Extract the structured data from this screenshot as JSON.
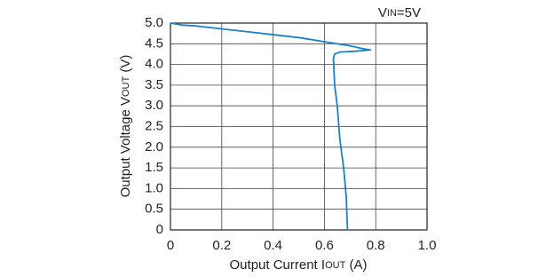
{
  "chart_data": {
    "type": "line",
    "ylabel": [
      "Output Voltage V",
      "OUT",
      " (V)"
    ],
    "xlabel": [
      "Output Current I",
      "OUT",
      " (A)"
    ],
    "annotation": [
      "V",
      "IN",
      "=5V"
    ],
    "x": [
      0,
      0.05,
      0.1,
      0.2,
      0.3,
      0.4,
      0.5,
      0.6,
      0.7,
      0.75,
      0.78,
      0.72,
      0.66,
      0.64,
      0.635,
      0.64,
      0.65,
      0.66,
      0.675,
      0.685,
      0.69
    ],
    "series": [
      {
        "color": "#1f7fc0",
        "values": [
          5.0,
          4.95,
          4.93,
          4.86,
          4.79,
          4.72,
          4.65,
          4.55,
          4.45,
          4.38,
          4.35,
          4.32,
          4.3,
          4.25,
          4.15,
          3.5,
          3.0,
          2.2,
          1.5,
          0.8,
          0
        ]
      }
    ],
    "xlim": [
      0,
      1
    ],
    "ylim": [
      0,
      5
    ],
    "xticks": [
      0,
      0.2,
      0.4,
      0.6,
      0.8,
      {
        "value": 1,
        "label": "1.0"
      }
    ],
    "yticks": [
      0,
      {
        "value": 0.5,
        "label": "0.5"
      },
      {
        "value": 1,
        "label": "1.0"
      },
      {
        "value": 1.5,
        "label": "1.5"
      },
      {
        "value": 2,
        "label": "2.0"
      },
      {
        "value": 2.5,
        "label": "2.5"
      },
      {
        "value": 3,
        "label": "3.0"
      },
      {
        "value": 3.5,
        "label": "3.5"
      },
      {
        "value": 4,
        "label": "4.0"
      },
      {
        "value": 4.5,
        "label": "4.5"
      },
      {
        "value": 5,
        "label": "5.0"
      }
    ],
    "grid": true
  }
}
